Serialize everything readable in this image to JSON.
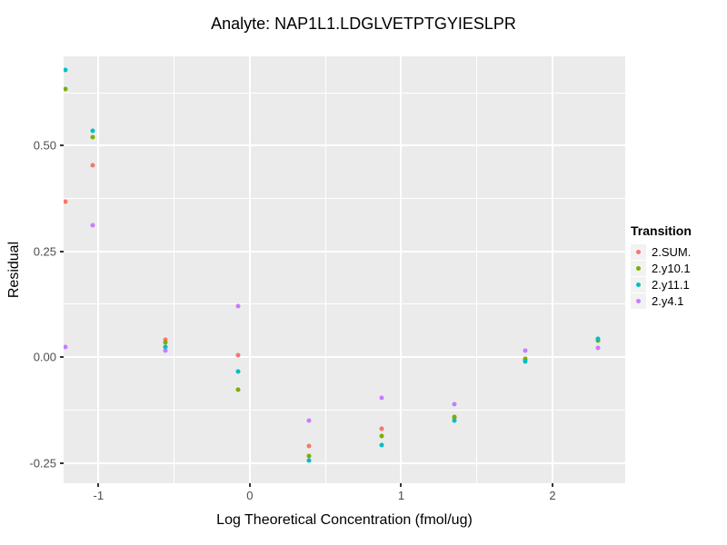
{
  "colors": {
    "panel_bg": "#EBEBEB",
    "grid": "#FFFFFF",
    "axis_text": "#4D4D4D",
    "axis_title": "#000000",
    "tick_mark": "#333333",
    "legend_key_bg": "#F2F2F2"
  },
  "chart_data": {
    "type": "scatter",
    "title": "Analyte: NAP1L1.LDGLVETPTGYIESLPR",
    "xlabel": "Log Theoretical Concentration (fmol/ug)",
    "ylabel": "Residual",
    "legend_title": "Transition",
    "legend_position": "right",
    "grid": true,
    "xlim": [
      -1.23,
      2.48
    ],
    "ylim": [
      -0.298,
      0.711
    ],
    "x_ticks": [
      {
        "value": -1,
        "label": "-1"
      },
      {
        "value": 0,
        "label": "0"
      },
      {
        "value": 1,
        "label": "1"
      },
      {
        "value": 2,
        "label": "2"
      }
    ],
    "y_ticks": [
      {
        "value": 0.5,
        "label": "0.50"
      },
      {
        "value": 0.25,
        "label": "0.25"
      },
      {
        "value": 0.0,
        "label": "0.00"
      },
      {
        "value": -0.25,
        "label": "-0.25"
      }
    ],
    "series": [
      {
        "name": "2.SUM.",
        "color": "#F8766D",
        "points": [
          [
            -1.22,
            0.368
          ],
          [
            -1.04,
            0.454
          ],
          [
            -0.56,
            0.042
          ],
          [
            -0.08,
            0.004
          ],
          [
            0.39,
            -0.21
          ],
          [
            0.87,
            -0.169
          ],
          [
            1.35,
            -0.144
          ],
          [
            1.82,
            -0.006
          ],
          [
            2.3,
            0.041
          ]
        ]
      },
      {
        "name": "2.y10.1",
        "color": "#7CAE00",
        "points": [
          [
            -1.22,
            0.634
          ],
          [
            -1.04,
            0.519
          ],
          [
            -0.56,
            0.034
          ],
          [
            -0.08,
            -0.077
          ],
          [
            0.39,
            -0.233
          ],
          [
            0.87,
            -0.187
          ],
          [
            1.35,
            -0.142
          ],
          [
            1.82,
            -0.003
          ],
          [
            2.3,
            0.04
          ]
        ]
      },
      {
        "name": "2.y11.1",
        "color": "#00BFC4",
        "points": [
          [
            -1.22,
            0.679
          ],
          [
            -1.04,
            0.535
          ],
          [
            -0.56,
            0.024
          ],
          [
            -0.08,
            -0.034
          ],
          [
            0.39,
            -0.244
          ],
          [
            0.87,
            -0.207
          ],
          [
            1.35,
            -0.149
          ],
          [
            1.82,
            -0.011
          ],
          [
            2.3,
            0.043
          ]
        ]
      },
      {
        "name": "2.y4.1",
        "color": "#C77CFF",
        "points": [
          [
            -1.22,
            0.025
          ],
          [
            -1.04,
            0.311
          ],
          [
            -0.56,
            0.016
          ],
          [
            -0.08,
            0.12
          ],
          [
            0.39,
            -0.15
          ],
          [
            0.87,
            -0.096
          ],
          [
            1.35,
            -0.112
          ],
          [
            1.82,
            0.015
          ],
          [
            2.3,
            0.022
          ]
        ]
      }
    ]
  }
}
